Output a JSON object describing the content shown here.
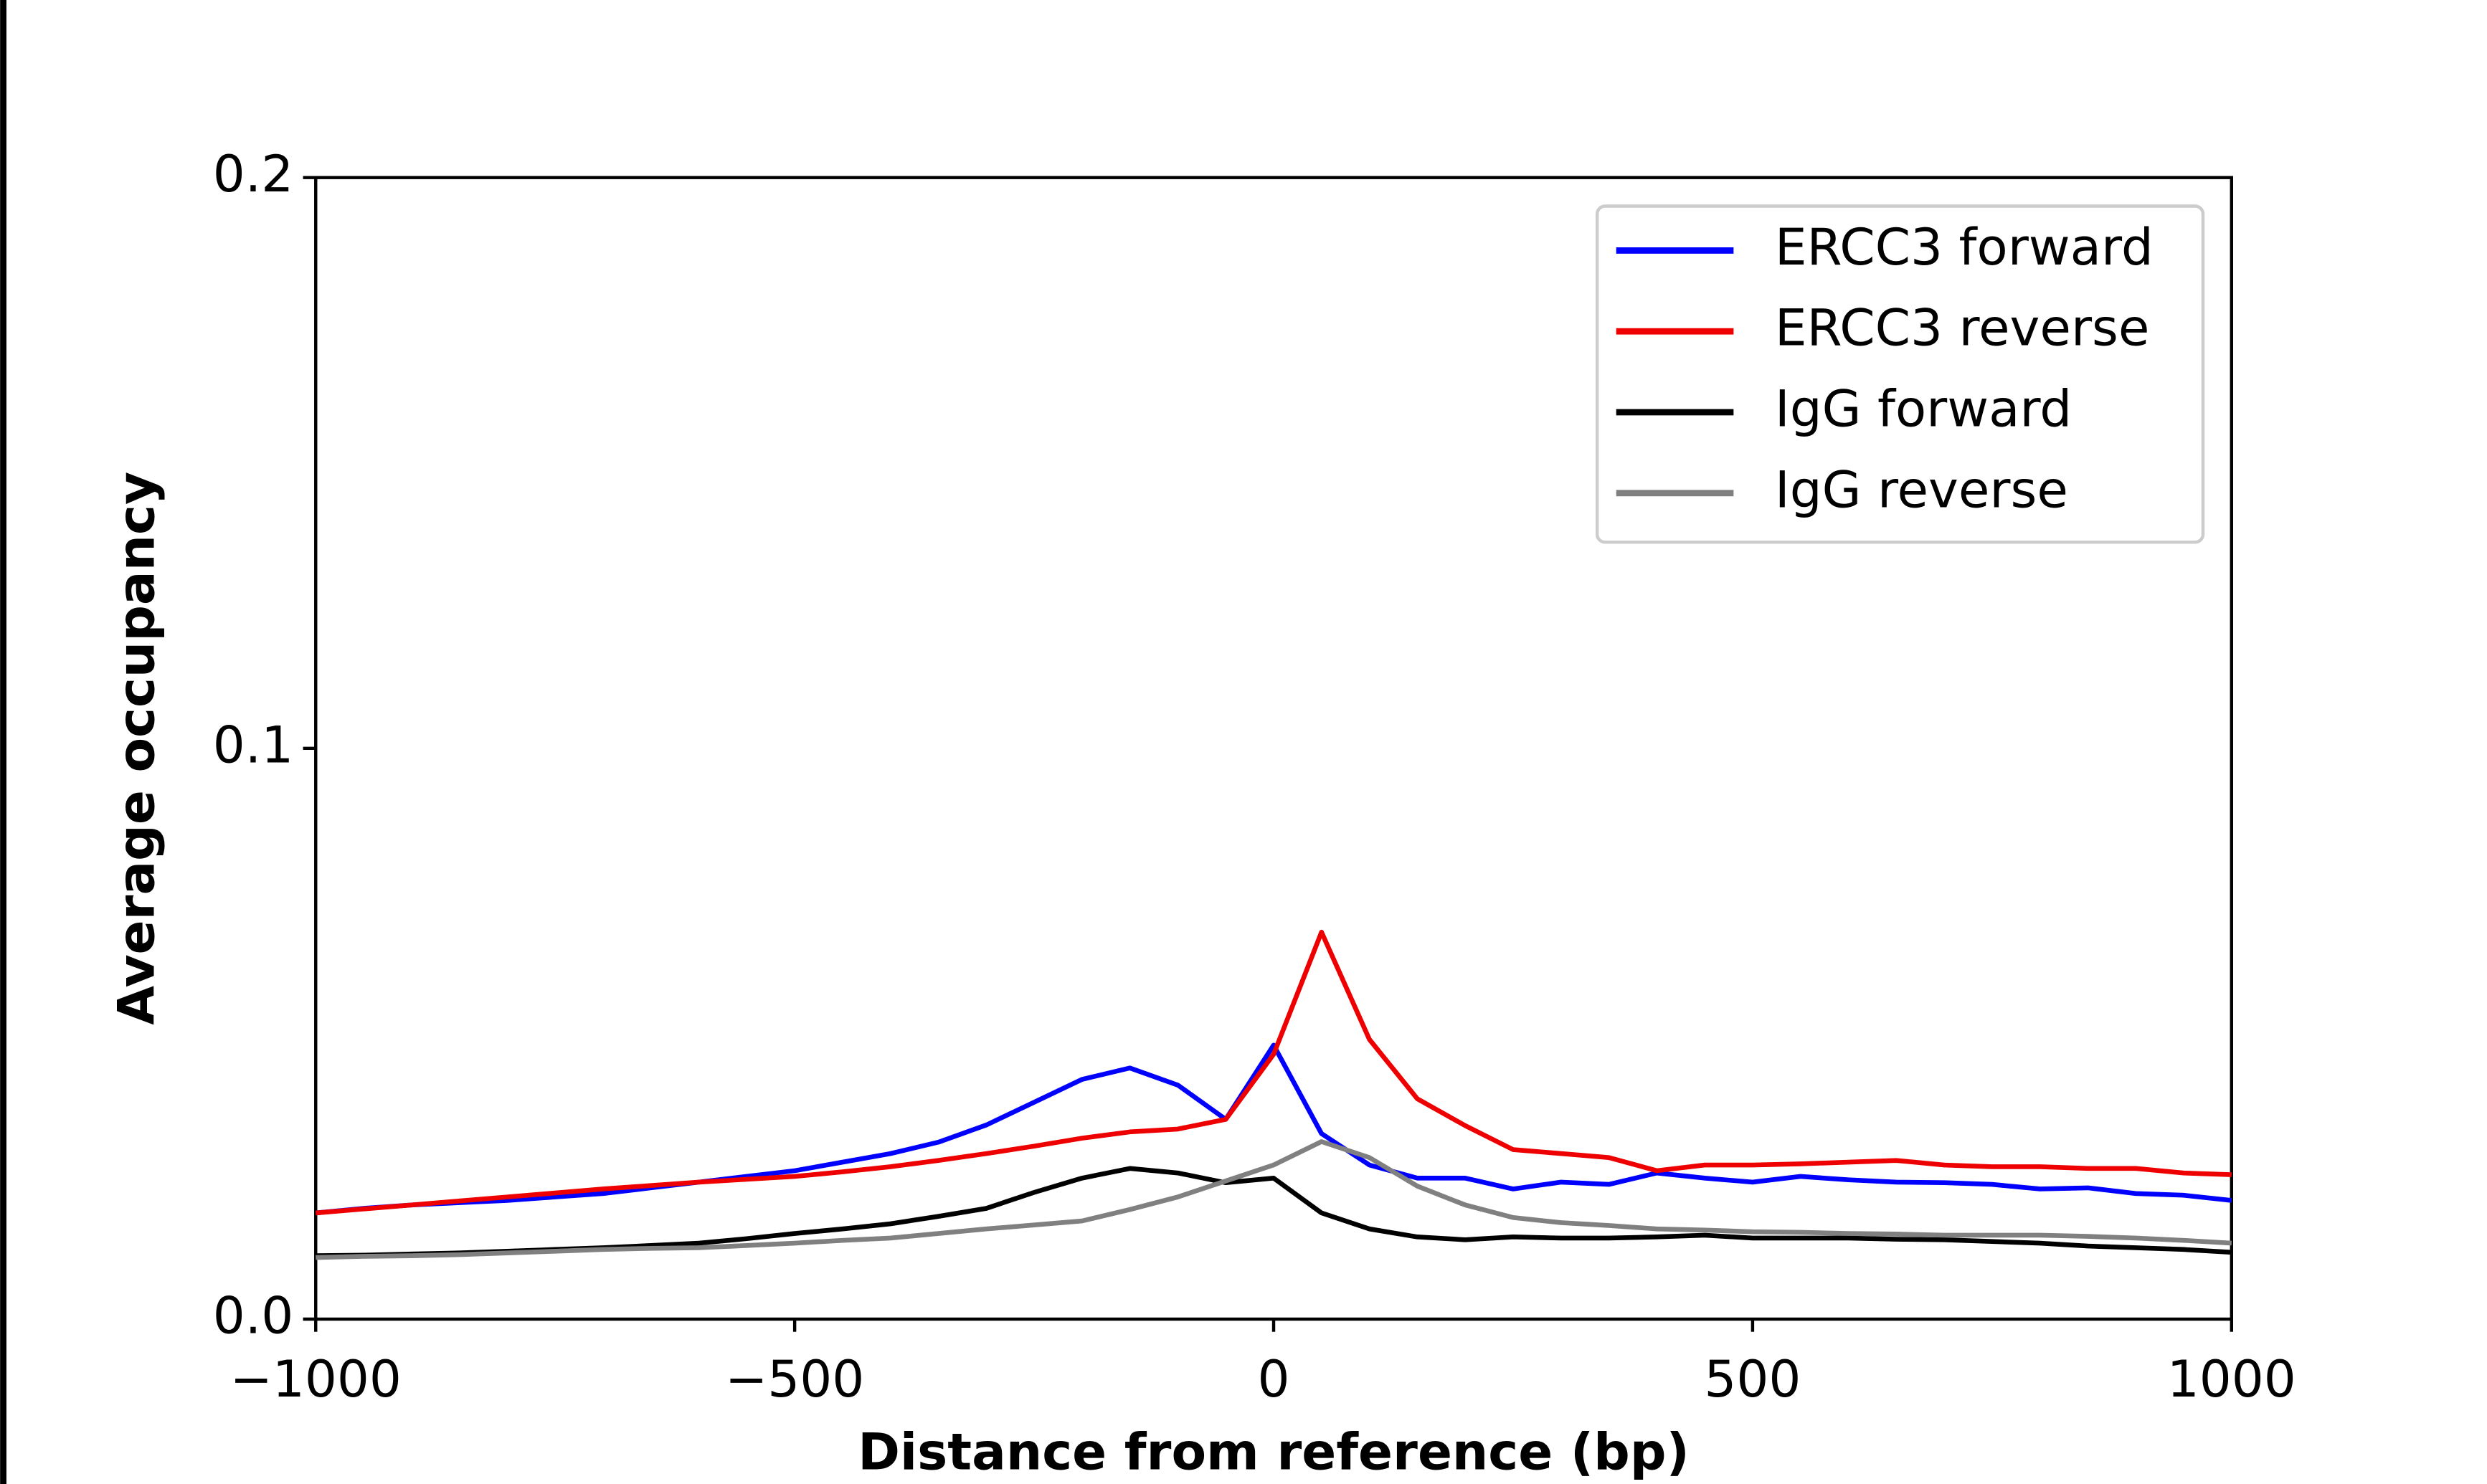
{
  "chart_data": {
    "type": "line",
    "xlabel": "Distance from reference (bp)",
    "ylabel": "Average occupancy",
    "x": [
      -1000,
      -950,
      -900,
      -850,
      -800,
      -750,
      -700,
      -650,
      -600,
      -550,
      -500,
      -450,
      -400,
      -350,
      -300,
      -250,
      -200,
      -150,
      -100,
      -50,
      0,
      50,
      100,
      150,
      200,
      250,
      300,
      350,
      400,
      450,
      500,
      550,
      600,
      650,
      700,
      750,
      800,
      850,
      900,
      950,
      1000
    ],
    "series": [
      {
        "name": "ERCC3 forward",
        "color": "#0000ff",
        "values": [
          0.0186,
          0.0194,
          0.02,
          0.0204,
          0.0208,
          0.0214,
          0.022,
          0.023,
          0.024,
          0.025,
          0.026,
          0.0275,
          0.029,
          0.031,
          0.034,
          0.038,
          0.042,
          0.044,
          0.041,
          0.035,
          0.048,
          0.0325,
          0.027,
          0.0247,
          0.0247,
          0.0228,
          0.024,
          0.0236,
          0.0256,
          0.0247,
          0.024,
          0.025,
          0.0244,
          0.024,
          0.0239,
          0.0236,
          0.0228,
          0.023,
          0.022,
          0.0217,
          0.0208
        ]
      },
      {
        "name": "ERCC3 reverse",
        "color": "#ee0000",
        "values": [
          0.0186,
          0.0193,
          0.02,
          0.0207,
          0.0214,
          0.0221,
          0.0228,
          0.0234,
          0.024,
          0.0245,
          0.025,
          0.0258,
          0.0267,
          0.0278,
          0.029,
          0.0303,
          0.0317,
          0.0328,
          0.0333,
          0.035,
          0.0464,
          0.0678,
          0.049,
          0.0386,
          0.0339,
          0.0297,
          0.029,
          0.0283,
          0.026,
          0.027,
          0.027,
          0.0272,
          0.0275,
          0.0278,
          0.027,
          0.0267,
          0.0267,
          0.0264,
          0.0264,
          0.0256,
          0.0253
        ]
      },
      {
        "name": "IgG forward",
        "color": "#000000",
        "values": [
          0.0111,
          0.0112,
          0.0114,
          0.0116,
          0.0119,
          0.0122,
          0.0125,
          0.0129,
          0.0133,
          0.0141,
          0.015,
          0.0158,
          0.0167,
          0.018,
          0.0194,
          0.0222,
          0.0247,
          0.0264,
          0.0256,
          0.0239,
          0.0247,
          0.0186,
          0.0158,
          0.0144,
          0.0139,
          0.0144,
          0.0142,
          0.0142,
          0.0144,
          0.0147,
          0.0142,
          0.0142,
          0.0142,
          0.014,
          0.0139,
          0.0136,
          0.0133,
          0.0128,
          0.0125,
          0.0122,
          0.0117
        ]
      },
      {
        "name": "IgG reverse",
        "color": "#808080",
        "values": [
          0.0108,
          0.011,
          0.0111,
          0.0113,
          0.0116,
          0.0119,
          0.0122,
          0.0124,
          0.0125,
          0.0129,
          0.0133,
          0.0138,
          0.0142,
          0.015,
          0.0158,
          0.0165,
          0.0172,
          0.0192,
          0.0214,
          0.0242,
          0.027,
          0.0311,
          0.0283,
          0.0233,
          0.02,
          0.0178,
          0.0169,
          0.0164,
          0.0158,
          0.0156,
          0.0153,
          0.0152,
          0.015,
          0.0149,
          0.0147,
          0.0147,
          0.0147,
          0.0145,
          0.0142,
          0.0138,
          0.0133
        ]
      }
    ],
    "xlim": [
      -1000,
      1000
    ],
    "xticks": [
      {
        "value": -1000,
        "label": "−1000"
      },
      {
        "value": -500,
        "label": "−500"
      },
      0,
      500,
      1000
    ],
    "ylim": [
      0,
      0.2
    ],
    "yticks": [
      {
        "value": 0,
        "label": "0.0"
      },
      0.1,
      0.2
    ],
    "grid": false,
    "legend": "upper right"
  }
}
